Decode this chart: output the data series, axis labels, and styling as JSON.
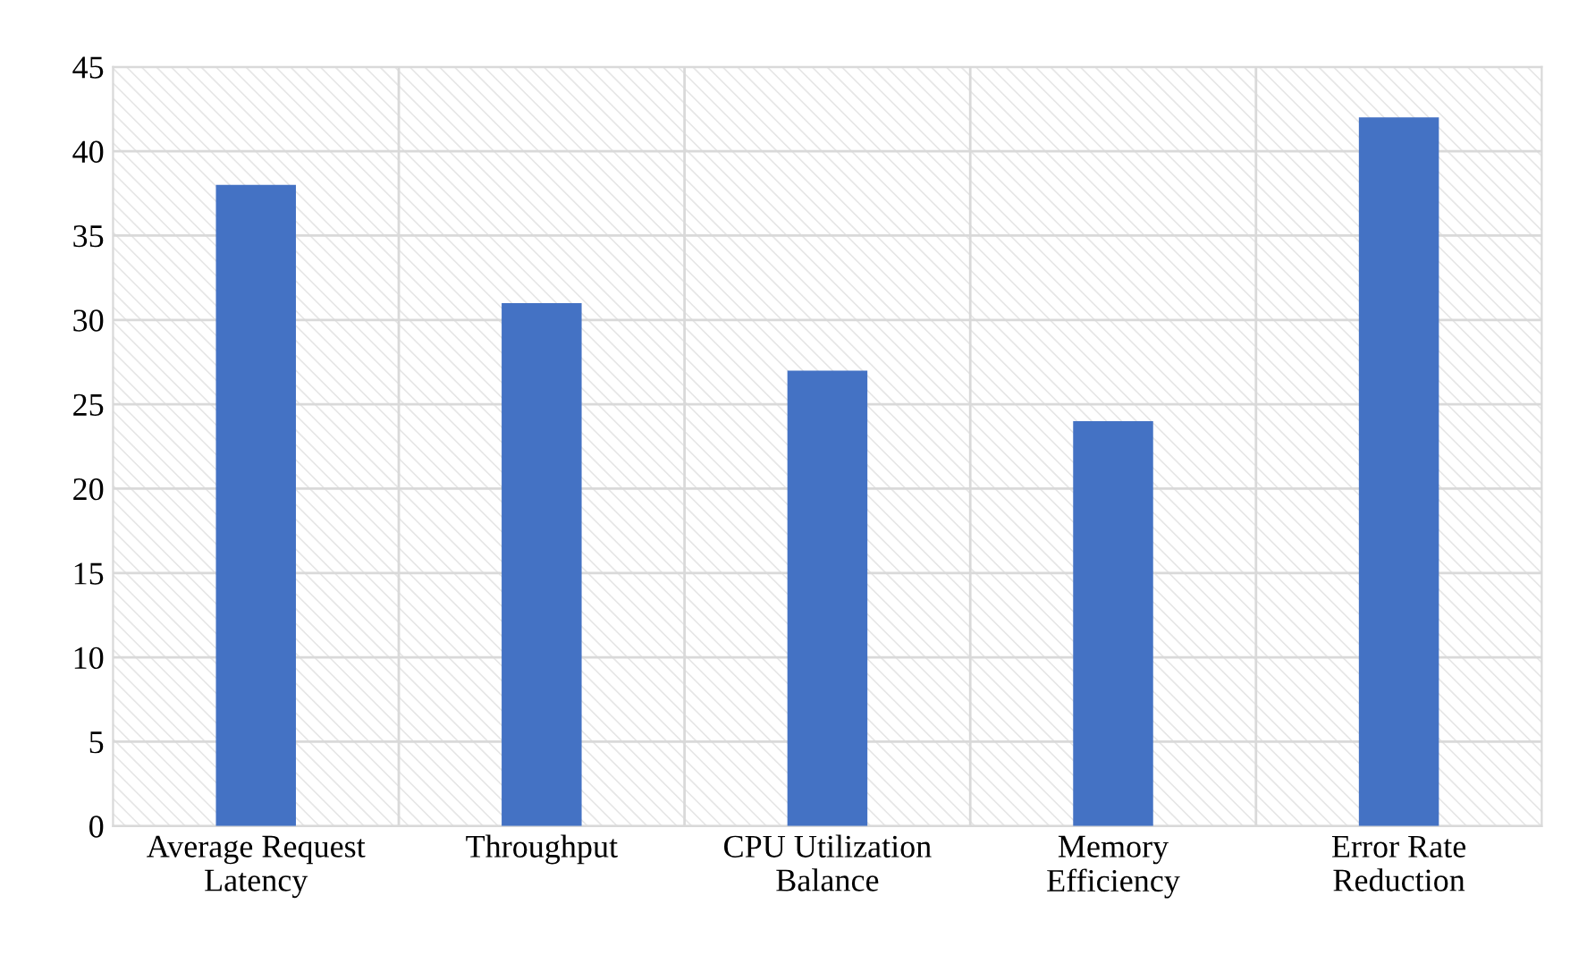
{
  "chart_data": {
    "type": "bar",
    "categories": [
      "Average Request\nLatency",
      "Throughput",
      "CPU Utilization\nBalance",
      "Memory\nEfficiency",
      "Error Rate\nReduction"
    ],
    "values": [
      38,
      31,
      27,
      24,
      42
    ],
    "color": "#4472c4",
    "ylim": [
      0,
      45
    ],
    "yticks": [
      0,
      5,
      10,
      15,
      20,
      25,
      30,
      35,
      40,
      45
    ],
    "grid": true
  }
}
